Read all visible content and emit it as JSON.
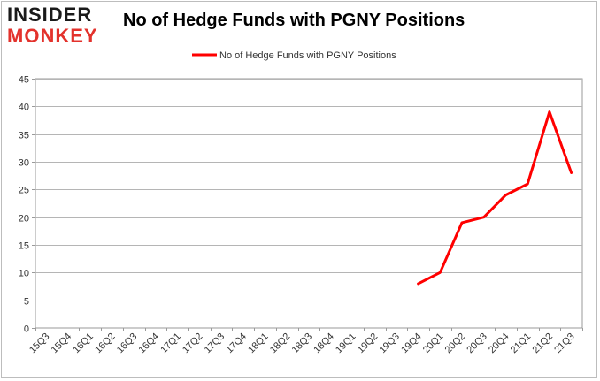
{
  "logo": {
    "line1": "INSIDER",
    "line2": "MONKEY"
  },
  "chart_data": {
    "type": "line",
    "title": "No of Hedge Funds with PGNY Positions",
    "xlabel": "",
    "ylabel": "",
    "categories": [
      "15Q3",
      "15Q4",
      "16Q1",
      "16Q2",
      "16Q3",
      "16Q4",
      "17Q1",
      "17Q2",
      "17Q3",
      "17Q4",
      "18Q1",
      "18Q2",
      "18Q3",
      "18Q4",
      "19Q1",
      "19Q2",
      "19Q3",
      "19Q4",
      "20Q1",
      "20Q2",
      "20Q3",
      "20Q4",
      "21Q1",
      "21Q2",
      "21Q3"
    ],
    "series": [
      {
        "name": "No of Hedge Funds with PGNY Positions",
        "color": "#ff0000",
        "values": [
          null,
          null,
          null,
          null,
          null,
          null,
          null,
          null,
          null,
          null,
          null,
          null,
          null,
          null,
          null,
          null,
          null,
          8,
          10,
          19,
          20,
          24,
          26,
          39,
          28
        ]
      }
    ],
    "ylim": [
      0,
      45
    ],
    "yticks": [
      0,
      5,
      10,
      15,
      20,
      25,
      30,
      35,
      40,
      45
    ],
    "grid": true,
    "legend": "top-center"
  }
}
